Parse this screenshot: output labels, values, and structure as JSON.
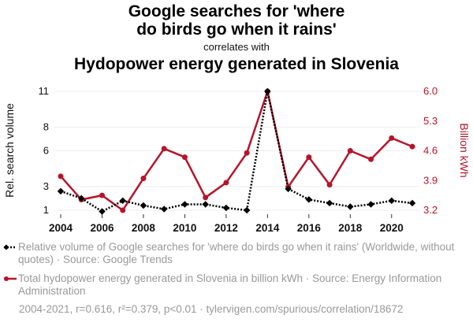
{
  "header": {
    "title_line1": "Google searches for 'where",
    "title_line2": "do birds go when it rains'",
    "correlates": "correlates with",
    "subtitle": "Hydopower energy generated in Slovenia"
  },
  "colors": {
    "series1": "#000000",
    "series2": "#b5152b",
    "grid": "#eeeeee"
  },
  "chart_data": {
    "type": "line",
    "x": [
      2004,
      2005,
      2006,
      2007,
      2008,
      2009,
      2010,
      2011,
      2012,
      2013,
      2014,
      2015,
      2016,
      2017,
      2018,
      2019,
      2020,
      2021
    ],
    "x_ticks": [
      "2004",
      "2006",
      "2008",
      "2010",
      "2012",
      "2014",
      "2016",
      "2018",
      "2020"
    ],
    "xlim": [
      2004,
      2021
    ],
    "series": [
      {
        "name": "Relative volume of Google searches for 'where do birds go when it rains'",
        "axis": "left",
        "style": "dotted-diamond",
        "values": [
          2.6,
          2.0,
          0.9,
          1.8,
          1.4,
          1.1,
          1.5,
          1.5,
          1.2,
          1.0,
          11.0,
          2.8,
          1.9,
          1.6,
          1.3,
          1.5,
          1.8,
          1.6
        ]
      },
      {
        "name": "Total hydopower energy generated in Slovenia in billion kWh",
        "axis": "right",
        "style": "solid-circle",
        "values": [
          4.0,
          3.45,
          3.55,
          3.2,
          3.95,
          4.65,
          4.45,
          3.5,
          3.85,
          4.55,
          6.0,
          3.75,
          4.45,
          3.8,
          4.6,
          4.4,
          4.9,
          4.7
        ]
      }
    ],
    "left_axis": {
      "label": "Rel. search volume",
      "ticks": [
        "1",
        "3",
        "6",
        "8",
        "11"
      ],
      "tick_values": [
        1,
        3,
        6,
        8,
        11
      ],
      "ylim": [
        1,
        11
      ]
    },
    "right_axis": {
      "label": "Billion kWh",
      "ticks": [
        "3.2",
        "3.9",
        "4.6",
        "5.3",
        "6.0"
      ],
      "tick_values": [
        3.2,
        3.9,
        4.6,
        5.3,
        6.0
      ],
      "ylim": [
        3.2,
        6.0
      ]
    }
  },
  "legend": {
    "item1": "Relative volume of Google searches for 'where do birds go when it rains' (Worldwide, without quotes) · Source: Google Trends",
    "item2": "Total hydopower energy generated in Slovenia in billion kWh · Source: Energy Information Administration"
  },
  "footer": "2004-2021, r=0.616, r²=0.379, p<0.01 · tylervigen.com/spurious/correlation/18672"
}
